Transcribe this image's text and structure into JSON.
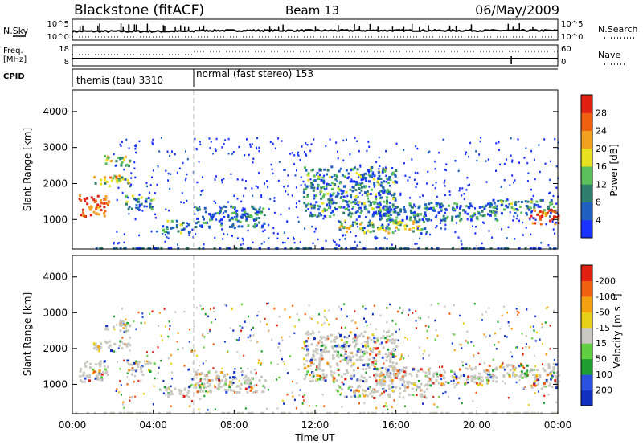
{
  "header": {
    "title": "Blackstone (fitACF)",
    "beam": "Beam 13",
    "date": "06/May/2009"
  },
  "panels": {
    "nsky": {
      "label": "N.Sky",
      "ticks": [
        "10^5",
        "10^0"
      ],
      "right_label": "N.Search",
      "right_ticks": [
        "10^5",
        "10^0"
      ]
    },
    "freq": {
      "label_line1": "Freq.",
      "label_line2": "[MHz]",
      "ticks": [
        "18",
        "8"
      ],
      "right_label": "Nave",
      "right_ticks": [
        "60",
        "0"
      ]
    },
    "cpid": {
      "label": "CPID",
      "segments": [
        "themis (tau) 3310",
        "normal (fast stereo) 153"
      ]
    }
  },
  "chart_data": [
    {
      "type": "heatmap",
      "title": "",
      "ylabel": "Slant Range [km]",
      "xlabel": "",
      "y_ticks": [
        "1000",
        "2000",
        "3000",
        "4000"
      ],
      "ylim": [
        180,
        4600
      ],
      "colorbar": {
        "label": "Power [dB]",
        "ticks": [
          "4",
          "8",
          "12",
          "16",
          "20",
          "24",
          "28"
        ],
        "colors": [
          "#1a32ff",
          "#2060c0",
          "#2f7f6e",
          "#5bbf5b",
          "#e8e020",
          "#f2a020",
          "#f06010",
          "#e02010"
        ],
        "range": [
          0,
          30
        ]
      },
      "features": [
        {
          "x": [
            0.3,
            1.8
          ],
          "y": [
            1100,
            1700
          ],
          "level": 0.85
        },
        {
          "x": [
            1.0,
            2.8
          ],
          "y": [
            1950,
            2250
          ],
          "level": 0.55
        },
        {
          "x": [
            1.5,
            2.8
          ],
          "y": [
            2500,
            2800
          ],
          "level": 0.5
        },
        {
          "x": [
            2.6,
            4.0
          ],
          "y": [
            1300,
            1700
          ],
          "level": 0.3
        },
        {
          "x": [
            4.4,
            5.8
          ],
          "y": [
            650,
            1000
          ],
          "level": 0.35
        },
        {
          "x": [
            6.0,
            9.5
          ],
          "y": [
            800,
            1400
          ],
          "level": 0.25
        },
        {
          "x": [
            11.4,
            16.0
          ],
          "y": [
            1100,
            2500
          ],
          "level": 0.3
        },
        {
          "x": [
            13.0,
            17.5
          ],
          "y": [
            650,
            1000
          ],
          "level": 0.45
        },
        {
          "x": [
            15.0,
            21.0
          ],
          "y": [
            1000,
            1500
          ],
          "level": 0.25
        },
        {
          "x": [
            20.5,
            24.0
          ],
          "y": [
            1200,
            1600
          ],
          "level": 0.3
        },
        {
          "x": [
            22.5,
            24.0
          ],
          "y": [
            900,
            1300
          ],
          "level": 0.9
        }
      ]
    },
    {
      "type": "heatmap",
      "title": "",
      "ylabel": "Slant Range [km]",
      "xlabel": "Time UT",
      "x_ticks": [
        "00:00",
        "04:00",
        "08:00",
        "12:00",
        "16:00",
        "20:00",
        "00:00"
      ],
      "y_ticks": [
        "1000",
        "2000",
        "3000",
        "4000"
      ],
      "ylim": [
        180,
        4600
      ],
      "colorbar": {
        "label": "Velocity [m s⁻¹]",
        "ticks": [
          "200",
          "100",
          "50",
          "15",
          "-15",
          "-50",
          "-100",
          "-200"
        ],
        "colors": [
          "#1030c0",
          "#2a50e0",
          "#1e9e30",
          "#60d040",
          "#c8c8c0",
          "#e8d018",
          "#f5a010",
          "#f06010",
          "#e02010"
        ],
        "range": [
          -250,
          250
        ]
      }
    }
  ],
  "xaxis": {
    "range_hours": [
      0,
      24
    ],
    "mode_change_hour": 6.0
  }
}
